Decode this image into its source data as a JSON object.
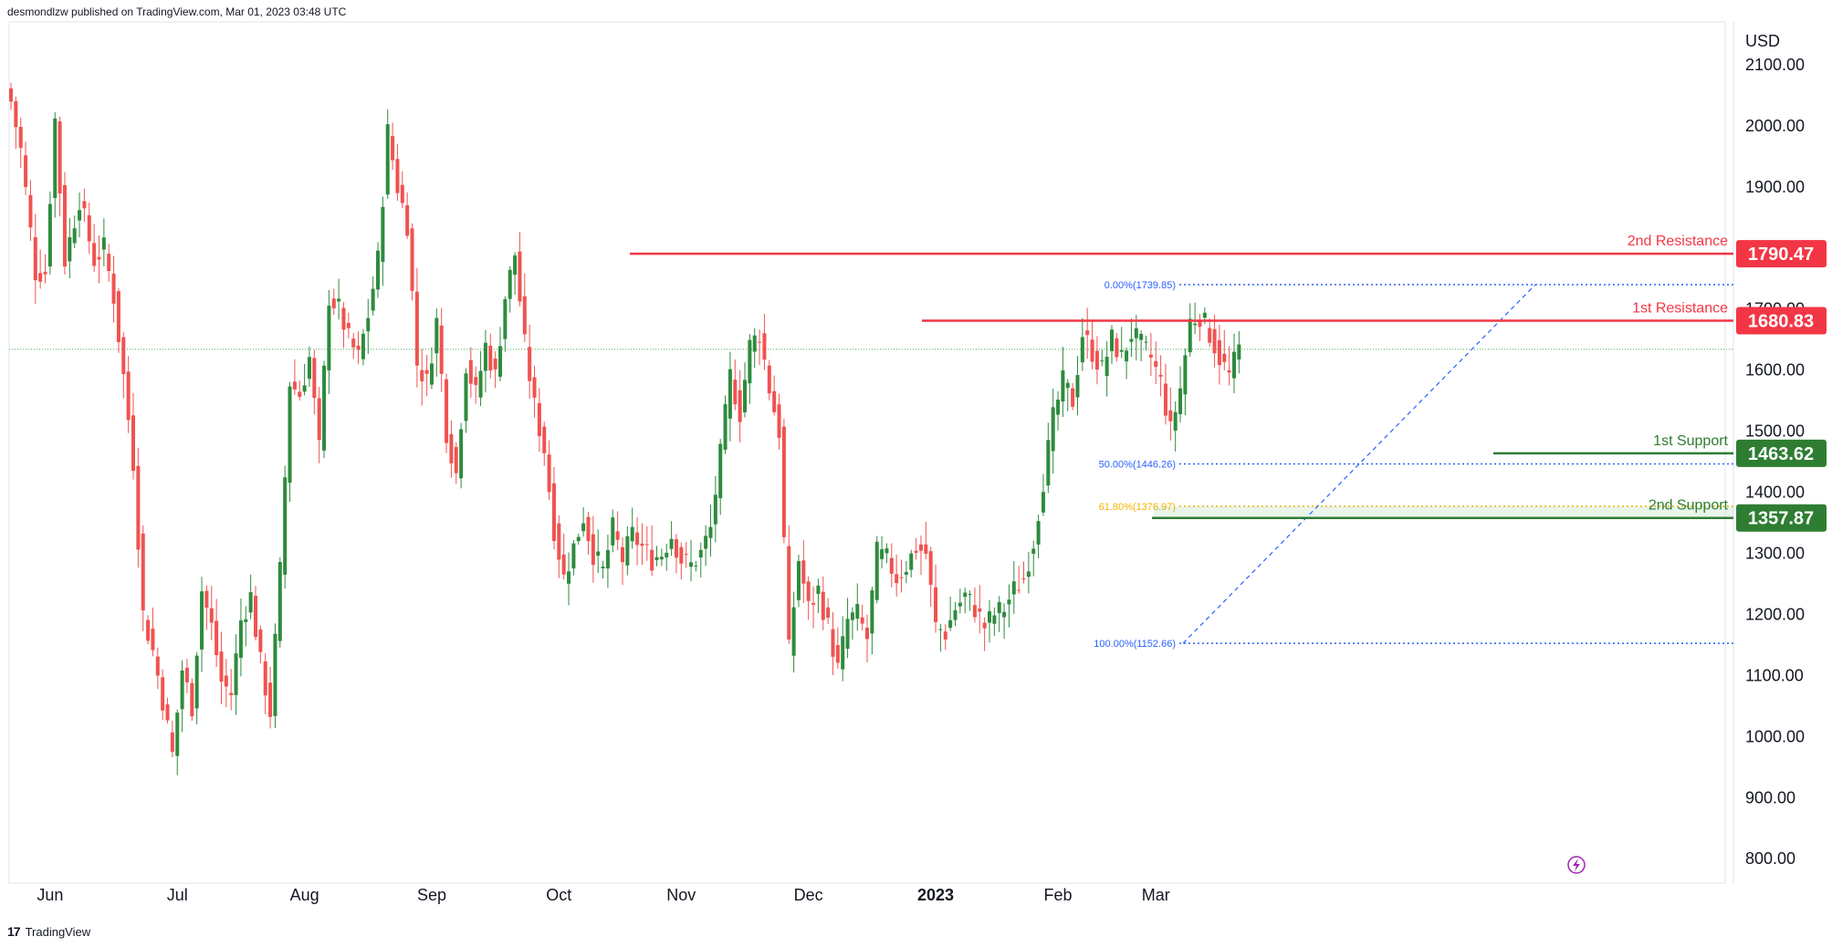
{
  "header": {
    "publish_text": "desmondlzw published on TradingView.com, Mar 01, 2023 03:48 UTC"
  },
  "footer": {
    "brand": "TradingView",
    "logo_glyph": "17"
  },
  "colors": {
    "up": "#26a69a",
    "up_fill": "#2e8b3e",
    "down": "#ef5350",
    "resistance": "#f23645",
    "support": "#2e7d32",
    "fib": "#2962ff",
    "fib_618": "#f5b400",
    "current_line": "#4caf50"
  },
  "chart_data": {
    "type": "candlestick",
    "currency": "USD",
    "ylim": [
      760,
      2170
    ],
    "y_ticks": [
      "2100.00",
      "2000.00",
      "1900.00",
      "1800.00",
      "1700.00",
      "1600.00",
      "1500.00",
      "1400.00",
      "1300.00",
      "1200.00",
      "1100.00",
      "1000.00",
      "900.00",
      "800.00"
    ],
    "x_ticks": [
      "Jun",
      "Jul",
      "Aug",
      "Sep",
      "Oct",
      "Nov",
      "Dec",
      "2023",
      "Feb",
      "Mar"
    ],
    "current_price": 1634,
    "levels": [
      {
        "name": "2nd Resistance",
        "value": "1790.47",
        "price": 1790.47,
        "kind": "resistance"
      },
      {
        "name": "1st Resistance",
        "value": "1680.83",
        "price": 1680.83,
        "kind": "resistance"
      },
      {
        "name": "1st Support",
        "value": "1463.62",
        "price": 1463.62,
        "kind": "support"
      },
      {
        "name": "2nd Support",
        "value": "1357.87",
        "price": 1357.87,
        "kind": "support"
      }
    ],
    "fib_levels": [
      {
        "label": "0.00%(1739.85)",
        "price": 1739.85
      },
      {
        "label": "50.00%(1446.26)",
        "price": 1446.26
      },
      {
        "label": "61.80%(1376.97)",
        "price": 1376.97
      },
      {
        "label": "100.00%(1152.66)",
        "price": 1152.66
      }
    ],
    "anchors": [
      {
        "i": 0,
        "p": 2040
      },
      {
        "i": 2,
        "p": 1960
      },
      {
        "i": 5,
        "p": 1760
      },
      {
        "i": 7,
        "p": 1760
      },
      {
        "i": 9,
        "p": 2010
      },
      {
        "i": 11,
        "p": 1780
      },
      {
        "i": 14,
        "p": 1880
      },
      {
        "i": 17,
        "p": 1780
      },
      {
        "i": 19,
        "p": 1800
      },
      {
        "i": 21,
        "p": 1720
      },
      {
        "i": 23,
        "p": 1590
      },
      {
        "i": 25,
        "p": 1450
      },
      {
        "i": 27,
        "p": 1200
      },
      {
        "i": 29,
        "p": 1140
      },
      {
        "i": 31,
        "p": 1060
      },
      {
        "i": 33,
        "p": 970
      },
      {
        "i": 35,
        "p": 1110
      },
      {
        "i": 37,
        "p": 1050
      },
      {
        "i": 39,
        "p": 1240
      },
      {
        "i": 41,
        "p": 1180
      },
      {
        "i": 43,
        "p": 1090
      },
      {
        "i": 45,
        "p": 1070
      },
      {
        "i": 47,
        "p": 1190
      },
      {
        "i": 49,
        "p": 1230
      },
      {
        "i": 51,
        "p": 1120
      },
      {
        "i": 53,
        "p": 1040
      },
      {
        "i": 55,
        "p": 1270
      },
      {
        "i": 57,
        "p": 1580
      },
      {
        "i": 59,
        "p": 1560
      },
      {
        "i": 61,
        "p": 1620
      },
      {
        "i": 63,
        "p": 1470
      },
      {
        "i": 65,
        "p": 1720
      },
      {
        "i": 67,
        "p": 1700
      },
      {
        "i": 69,
        "p": 1650
      },
      {
        "i": 71,
        "p": 1620
      },
      {
        "i": 73,
        "p": 1690
      },
      {
        "i": 75,
        "p": 1780
      },
      {
        "i": 77,
        "p": 1990
      },
      {
        "i": 79,
        "p": 1900
      },
      {
        "i": 81,
        "p": 1840
      },
      {
        "i": 83,
        "p": 1610
      },
      {
        "i": 85,
        "p": 1580
      },
      {
        "i": 87,
        "p": 1680
      },
      {
        "i": 89,
        "p": 1500
      },
      {
        "i": 91,
        "p": 1430
      },
      {
        "i": 93,
        "p": 1610
      },
      {
        "i": 95,
        "p": 1560
      },
      {
        "i": 97,
        "p": 1640
      },
      {
        "i": 99,
        "p": 1590
      },
      {
        "i": 101,
        "p": 1720
      },
      {
        "i": 103,
        "p": 1790
      },
      {
        "i": 105,
        "p": 1640
      },
      {
        "i": 107,
        "p": 1540
      },
      {
        "i": 109,
        "p": 1470
      },
      {
        "i": 111,
        "p": 1340
      },
      {
        "i": 113,
        "p": 1260
      },
      {
        "i": 115,
        "p": 1310
      },
      {
        "i": 117,
        "p": 1360
      },
      {
        "i": 119,
        "p": 1300
      },
      {
        "i": 121,
        "p": 1270
      },
      {
        "i": 123,
        "p": 1340
      },
      {
        "i": 125,
        "p": 1290
      },
      {
        "i": 127,
        "p": 1330
      },
      {
        "i": 129,
        "p": 1310
      },
      {
        "i": 131,
        "p": 1290
      },
      {
        "i": 133,
        "p": 1300
      },
      {
        "i": 135,
        "p": 1330
      },
      {
        "i": 137,
        "p": 1290
      },
      {
        "i": 139,
        "p": 1280
      },
      {
        "i": 141,
        "p": 1300
      },
      {
        "i": 143,
        "p": 1340
      },
      {
        "i": 145,
        "p": 1460
      },
      {
        "i": 147,
        "p": 1590
      },
      {
        "i": 149,
        "p": 1530
      },
      {
        "i": 151,
        "p": 1640
      },
      {
        "i": 153,
        "p": 1660
      },
      {
        "i": 155,
        "p": 1570
      },
      {
        "i": 157,
        "p": 1500
      },
      {
        "i": 159,
        "p": 1140
      },
      {
        "i": 161,
        "p": 1290
      },
      {
        "i": 163,
        "p": 1210
      },
      {
        "i": 165,
        "p": 1240
      },
      {
        "i": 167,
        "p": 1180
      },
      {
        "i": 169,
        "p": 1110
      },
      {
        "i": 171,
        "p": 1190
      },
      {
        "i": 173,
        "p": 1200
      },
      {
        "i": 175,
        "p": 1160
      },
      {
        "i": 177,
        "p": 1300
      },
      {
        "i": 179,
        "p": 1290
      },
      {
        "i": 181,
        "p": 1260
      },
      {
        "i": 183,
        "p": 1280
      },
      {
        "i": 185,
        "p": 1310
      },
      {
        "i": 187,
        "p": 1300
      },
      {
        "i": 189,
        "p": 1180
      },
      {
        "i": 191,
        "p": 1170
      },
      {
        "i": 193,
        "p": 1210
      },
      {
        "i": 195,
        "p": 1230
      },
      {
        "i": 197,
        "p": 1210
      },
      {
        "i": 199,
        "p": 1180
      },
      {
        "i": 201,
        "p": 1200
      },
      {
        "i": 203,
        "p": 1210
      },
      {
        "i": 205,
        "p": 1240
      },
      {
        "i": 207,
        "p": 1260
      },
      {
        "i": 209,
        "p": 1320
      },
      {
        "i": 211,
        "p": 1420
      },
      {
        "i": 213,
        "p": 1520
      },
      {
        "i": 215,
        "p": 1580
      },
      {
        "i": 217,
        "p": 1550
      },
      {
        "i": 219,
        "p": 1660
      },
      {
        "i": 221,
        "p": 1630
      },
      {
        "i": 223,
        "p": 1600
      },
      {
        "i": 225,
        "p": 1650
      },
      {
        "i": 227,
        "p": 1620
      },
      {
        "i": 229,
        "p": 1660
      },
      {
        "i": 231,
        "p": 1640
      },
      {
        "i": 233,
        "p": 1620
      },
      {
        "i": 235,
        "p": 1580
      },
      {
        "i": 237,
        "p": 1500
      },
      {
        "i": 239,
        "p": 1570
      },
      {
        "i": 241,
        "p": 1680
      },
      {
        "i": 243,
        "p": 1690
      },
      {
        "i": 245,
        "p": 1660
      },
      {
        "i": 247,
        "p": 1620
      },
      {
        "i": 249,
        "p": 1590
      },
      {
        "i": 251,
        "p": 1634
      }
    ]
  }
}
